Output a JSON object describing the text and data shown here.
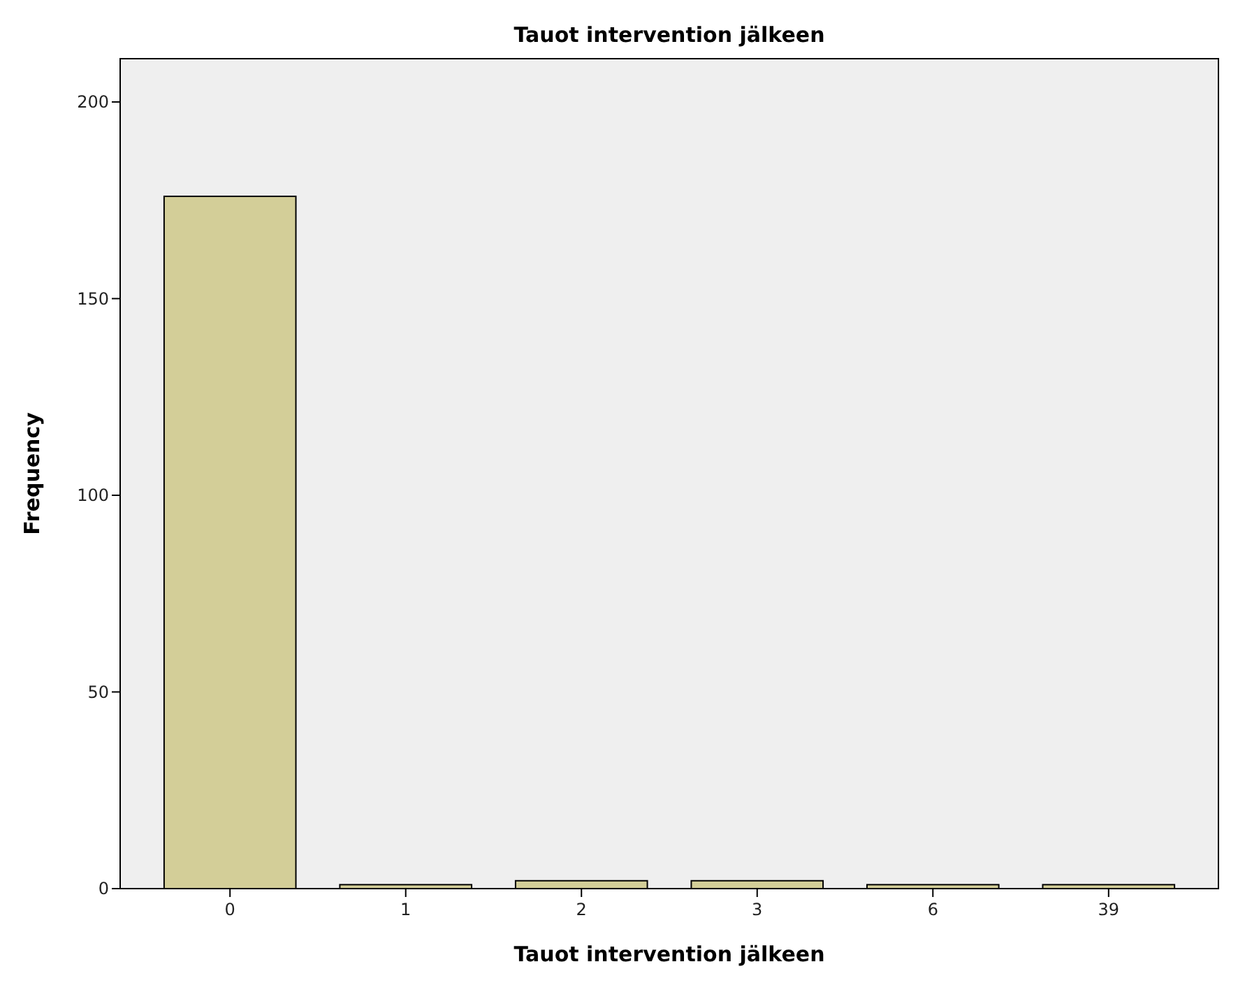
{
  "chart_data": {
    "type": "bar",
    "title": "Tauot intervention jälkeen",
    "xlabel": "Tauot intervention jälkeen",
    "ylabel": "Frequency",
    "categories": [
      "0",
      "1",
      "2",
      "3",
      "6",
      "39"
    ],
    "values": [
      176,
      1,
      2,
      2,
      1,
      1
    ],
    "color": "#d3ce98",
    "ylim": [
      0,
      211
    ],
    "yticks": [
      0,
      50,
      100,
      150,
      200
    ],
    "grid": false
  }
}
